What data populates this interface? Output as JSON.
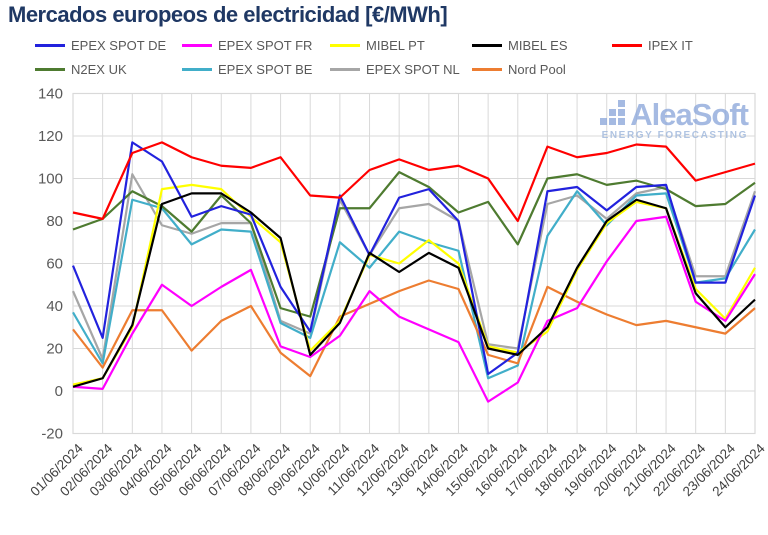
{
  "title": "Mercados europeos de electricidad [€/MWh]",
  "watermark": {
    "brand": "AleaSoft",
    "tagline": "ENERGY FORECASTING"
  },
  "axis": {
    "y_tick_labels": [
      "-20",
      "0",
      "20",
      "40",
      "60",
      "80",
      "100",
      "120",
      "140"
    ]
  },
  "chart_data": {
    "type": "line",
    "title": "Mercados europeos de electricidad [€/MWh]",
    "x": [
      "01/06/2024",
      "02/06/2024",
      "03/06/2024",
      "04/06/2024",
      "05/06/2024",
      "06/06/2024",
      "07/06/2024",
      "08/06/2024",
      "09/06/2024",
      "10/06/2024",
      "11/06/2024",
      "12/06/2024",
      "13/06/2024",
      "14/06/2024",
      "15/06/2024",
      "16/06/2024",
      "17/06/2024",
      "18/06/2024",
      "19/06/2024",
      "20/06/2024",
      "21/06/2024",
      "22/06/2024",
      "23/06/2024",
      "24/06/2024"
    ],
    "xlabel": "",
    "ylabel": "",
    "ylim": [
      -20,
      140
    ],
    "ytick_step": 20,
    "grid": true,
    "legend_position": "top",
    "series": [
      {
        "name": "EPEX SPOT DE",
        "color": "#2222DD",
        "values": [
          59,
          25,
          117,
          108,
          82,
          87,
          83,
          49,
          28,
          92,
          64,
          91,
          95,
          80,
          8,
          18,
          94,
          96,
          85,
          96,
          97,
          51,
          51,
          92
        ]
      },
      {
        "name": "EPEX SPOT FR",
        "color": "#FF00FF",
        "values": [
          2,
          1,
          27,
          50,
          40,
          49,
          57,
          21,
          16,
          26,
          47,
          35,
          29,
          23,
          -5,
          4,
          33,
          39,
          61,
          80,
          82,
          42,
          33,
          55
        ]
      },
      {
        "name": "MIBEL PT",
        "color": "#FFFF00",
        "values": [
          3,
          6,
          30,
          95,
          97,
          95,
          82,
          70,
          19,
          33,
          64,
          60,
          71,
          60,
          21,
          18,
          28,
          57,
          79,
          89,
          86,
          48,
          34,
          58
        ]
      },
      {
        "name": "MIBEL ES",
        "color": "#000000",
        "values": [
          2,
          6,
          31,
          88,
          93,
          93,
          84,
          72,
          17,
          32,
          65,
          56,
          65,
          58,
          20,
          17,
          30,
          58,
          80,
          90,
          86,
          46,
          30,
          43
        ]
      },
      {
        "name": "IPEX IT",
        "color": "#FF0000",
        "values": [
          84,
          81,
          112,
          117,
          110,
          106,
          105,
          110,
          92,
          91,
          104,
          109,
          104,
          106,
          100,
          80,
          115,
          110,
          112,
          116,
          115,
          99,
          103,
          107
        ]
      },
      {
        "name": "N2EX UK",
        "color": "#4E7B30",
        "values": [
          76,
          81,
          94,
          87,
          75,
          92,
          79,
          39,
          35,
          86,
          86,
          103,
          96,
          84,
          89,
          69,
          100,
          102,
          97,
          99,
          95,
          87,
          88,
          98
        ]
      },
      {
        "name": "EPEX SPOT BE",
        "color": "#41AEC9",
        "values": [
          37,
          13,
          90,
          86,
          69,
          76,
          75,
          32,
          25,
          70,
          58,
          75,
          70,
          66,
          6,
          12,
          73,
          94,
          78,
          92,
          93,
          51,
          53,
          76
        ]
      },
      {
        "name": "EPEX SPOT NL",
        "color": "#A6A6A6",
        "values": [
          47,
          15,
          102,
          78,
          74,
          79,
          79,
          33,
          27,
          90,
          64,
          86,
          88,
          80,
          22,
          20,
          88,
          92,
          81,
          93,
          96,
          54,
          54,
          94
        ]
      },
      {
        "name": "Nord Pool",
        "color": "#ED7D31",
        "values": [
          29,
          11,
          38,
          38,
          19,
          33,
          40,
          18,
          7,
          35,
          41,
          47,
          52,
          48,
          17,
          13,
          49,
          42,
          36,
          31,
          33,
          30,
          27,
          39
        ]
      }
    ]
  }
}
